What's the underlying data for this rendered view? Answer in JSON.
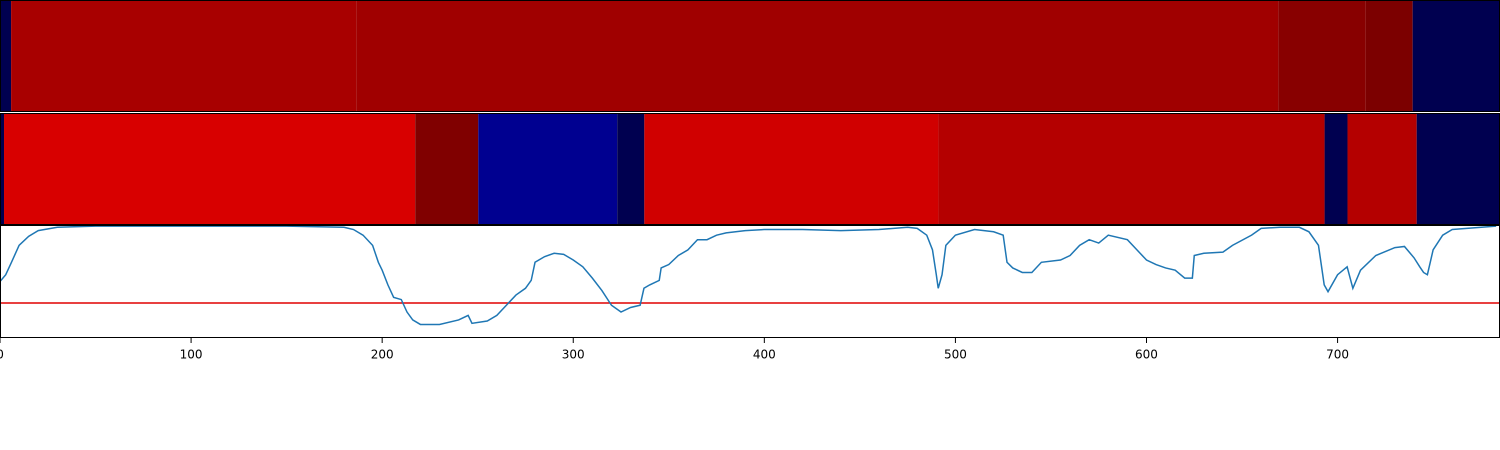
{
  "chart_data": [
    {
      "type": "heatmap",
      "xlim": [
        0,
        785
      ],
      "x": [
        0,
        5.8,
        186.4,
        669,
        714.7,
        739.3,
        785
      ],
      "colors": [
        "#000050",
        "#a80000",
        "#a00000",
        "#880000",
        "#7c0000",
        "#000050"
      ]
    },
    {
      "type": "heatmap",
      "xlim": [
        0,
        785
      ],
      "x": [
        0,
        2.1,
        217.3,
        250.3,
        323,
        337.2,
        491.1,
        693.2,
        705.2,
        741.4,
        785
      ],
      "colors": [
        "#000050",
        "#d80000",
        "#800000",
        "#000090",
        "#000050",
        "#d00000",
        "#b40000",
        "#000050",
        "#b40000",
        "#000050"
      ]
    },
    {
      "type": "line",
      "xlim": [
        0,
        785
      ],
      "ylim": [
        0,
        1
      ],
      "xticks": [
        0,
        100,
        200,
        300,
        400,
        500,
        600,
        700
      ],
      "hline": 0.31,
      "hline_color": "#e00000",
      "series": [
        {
          "color": "#1f77b4",
          "x": [
            0,
            3,
            6,
            10,
            15,
            20,
            30,
            50,
            100,
            150,
            180,
            185,
            190,
            195,
            198,
            200,
            203,
            206,
            210,
            213,
            216,
            220,
            230,
            240,
            245,
            247,
            255,
            260,
            265,
            270,
            275,
            278,
            280,
            285,
            290,
            295,
            300,
            305,
            310,
            315,
            320,
            325,
            330,
            335,
            337,
            340,
            345,
            346,
            350,
            355,
            360,
            365,
            370,
            375,
            380,
            390,
            400,
            420,
            440,
            460,
            475,
            480,
            485,
            488,
            490,
            491,
            493,
            495,
            500,
            510,
            520,
            525,
            527,
            530,
            535,
            540,
            545,
            555,
            560,
            565,
            570,
            575,
            580,
            590,
            595,
            600,
            605,
            610,
            615,
            620,
            624,
            625,
            630,
            640,
            645,
            655,
            660,
            670,
            680,
            685,
            690,
            693,
            695,
            700,
            705,
            708,
            712,
            720,
            730,
            735,
            740,
            743,
            745,
            747,
            750,
            755,
            760,
            783
          ],
          "values": [
            0.5,
            0.56,
            0.67,
            0.82,
            0.9,
            0.95,
            0.98,
            0.99,
            0.99,
            0.99,
            0.98,
            0.96,
            0.91,
            0.82,
            0.67,
            0.6,
            0.47,
            0.36,
            0.34,
            0.23,
            0.16,
            0.12,
            0.12,
            0.16,
            0.2,
            0.13,
            0.15,
            0.2,
            0.29,
            0.38,
            0.44,
            0.51,
            0.67,
            0.72,
            0.75,
            0.74,
            0.69,
            0.63,
            0.53,
            0.42,
            0.29,
            0.23,
            0.27,
            0.29,
            0.44,
            0.47,
            0.51,
            0.62,
            0.65,
            0.73,
            0.78,
            0.87,
            0.87,
            0.91,
            0.93,
            0.95,
            0.96,
            0.96,
            0.95,
            0.96,
            0.98,
            0.97,
            0.91,
            0.78,
            0.56,
            0.44,
            0.56,
            0.82,
            0.91,
            0.96,
            0.94,
            0.91,
            0.67,
            0.62,
            0.58,
            0.58,
            0.67,
            0.69,
            0.73,
            0.82,
            0.87,
            0.84,
            0.91,
            0.87,
            0.78,
            0.69,
            0.65,
            0.62,
            0.6,
            0.53,
            0.53,
            0.73,
            0.75,
            0.76,
            0.82,
            0.91,
            0.97,
            0.98,
            0.98,
            0.94,
            0.82,
            0.47,
            0.41,
            0.56,
            0.63,
            0.44,
            0.6,
            0.73,
            0.8,
            0.81,
            0.71,
            0.63,
            0.58,
            0.56,
            0.78,
            0.91,
            0.96,
            0.99
          ]
        }
      ]
    }
  ]
}
